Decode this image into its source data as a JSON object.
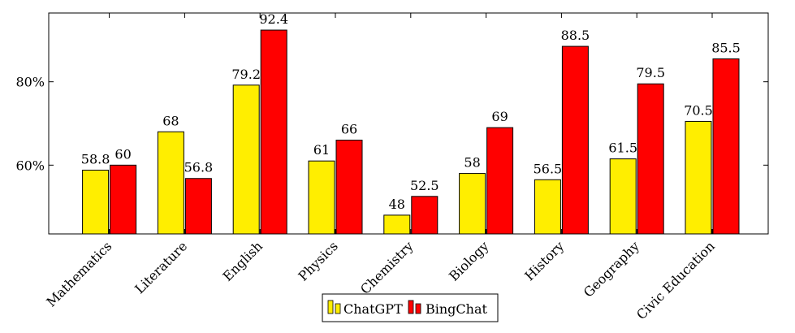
{
  "chart_data": {
    "type": "bar",
    "categories": [
      "Mathematics",
      "Literature",
      "English",
      "Physics",
      "Chemistry",
      "Biology",
      "History",
      "Geography",
      "Civic Education"
    ],
    "series": [
      {
        "name": "ChatGPT",
        "color": "#ffee00",
        "values": [
          58.8,
          68,
          79.2,
          61,
          48,
          58,
          56.5,
          61.5,
          70.5
        ],
        "labels": [
          "58.8",
          "68",
          "79.2",
          "61",
          "48",
          "58",
          "56.5",
          "61.5",
          "70.5"
        ]
      },
      {
        "name": "BingChat",
        "color": "#ff0000",
        "values": [
          60,
          56.8,
          92.4,
          66,
          52.5,
          69,
          88.5,
          79.5,
          85.5
        ],
        "labels": [
          "60",
          "56.8",
          "92.4",
          "66",
          "52.5",
          "69",
          "88.5",
          "79.5",
          "85.5"
        ]
      }
    ],
    "yticks": [
      60,
      80
    ],
    "ytick_labels": [
      "60%",
      "80%"
    ],
    "ylim": [
      43.5,
      96.5
    ],
    "title": "",
    "xlabel": "",
    "ylabel": "",
    "grid": false,
    "legend_position": "bottom-center"
  }
}
